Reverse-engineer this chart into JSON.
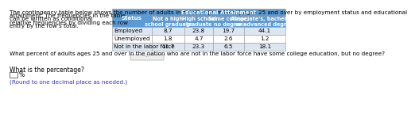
{
  "paragraph_lines": [
    "The contingency table below shows the number of adults in a nation (in millions) ages 25 and over by employment status and educational",
    "attainment. The frequencies in the table",
    "can be written as conditional",
    "relative frequencies by dividing each row",
    "entry by the row’s total."
  ],
  "table_header_top": "Educational Attainment",
  "col_headers": [
    "Status",
    "Not a high\nschool graduate",
    "High school\ngraduate",
    "Some college,\nno degree",
    "Associate's, bachelor's,\nor advanced degree"
  ],
  "rows": [
    [
      "Employed",
      "8.7",
      "23.8",
      "19.7",
      "44.1"
    ],
    [
      "Unemployed",
      "1.8",
      "4.7",
      "2.6",
      "1.2"
    ],
    [
      "Not in the labor force",
      "11.7",
      "23.3",
      "6.5",
      "18.1"
    ]
  ],
  "question_text": "What percent of adults ages 25 and over in the nation who are not in the labor force have some college education, but no degree?",
  "sub_question": "What is the percentage?",
  "answer_hint": "(Round to one decimal place as needed.)",
  "bg_color": "#ffffff",
  "header_bg": "#5b9bd5",
  "header_text_color": "#ffffff",
  "row_bg_alt": "#dce6f1",
  "row_bg_norm": "#ffffff",
  "table_text_color": "#000000",
  "para_text_color": "#000000",
  "question_text_color": "#000000",
  "hint_text_color": "#3333cc",
  "font_size_para": 5.2,
  "font_size_table_header": 5.0,
  "font_size_table_data": 5.2,
  "font_size_question": 5.2,
  "font_size_sub": 5.5,
  "font_size_hint": 5.2
}
